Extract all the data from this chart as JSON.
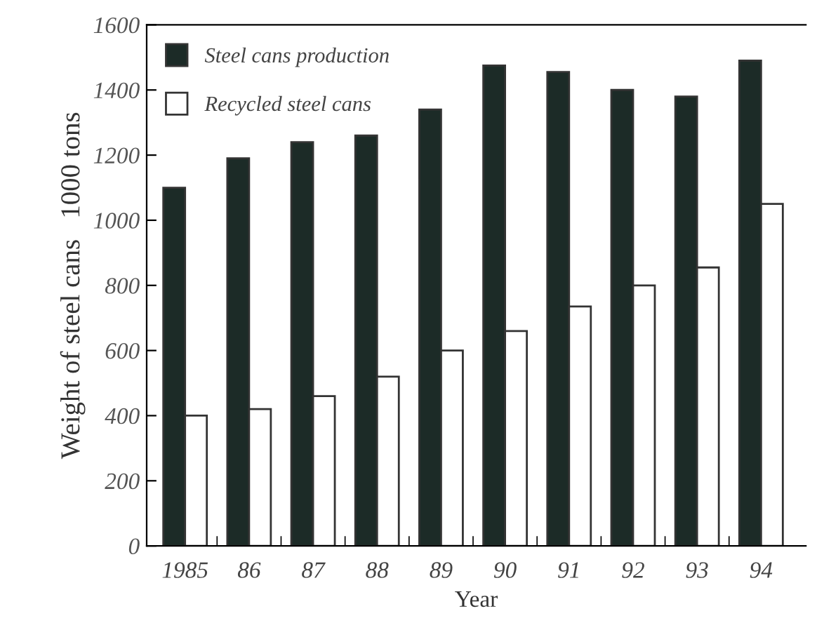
{
  "chart_data": {
    "type": "bar",
    "xlabel": "Year",
    "ylabel": "Weight of steel cans   1000 tons",
    "categories": [
      "1985",
      "86",
      "87",
      "88",
      "89",
      "90",
      "91",
      "92",
      "93",
      "94"
    ],
    "series": [
      {
        "name": "Steel cans production",
        "color": "#1c2b27",
        "values": [
          1100,
          1190,
          1240,
          1260,
          1340,
          1475,
          1455,
          1400,
          1380,
          1490
        ]
      },
      {
        "name": "Recycled steel cans",
        "color": "#ffffff",
        "values": [
          400,
          420,
          460,
          520,
          600,
          660,
          735,
          800,
          855,
          1050
        ]
      }
    ],
    "ylim": [
      0,
      1600
    ],
    "yticks": [
      0,
      200,
      400,
      600,
      800,
      1000,
      1200,
      1400,
      1600
    ],
    "legend": "top left",
    "grid": false
  }
}
